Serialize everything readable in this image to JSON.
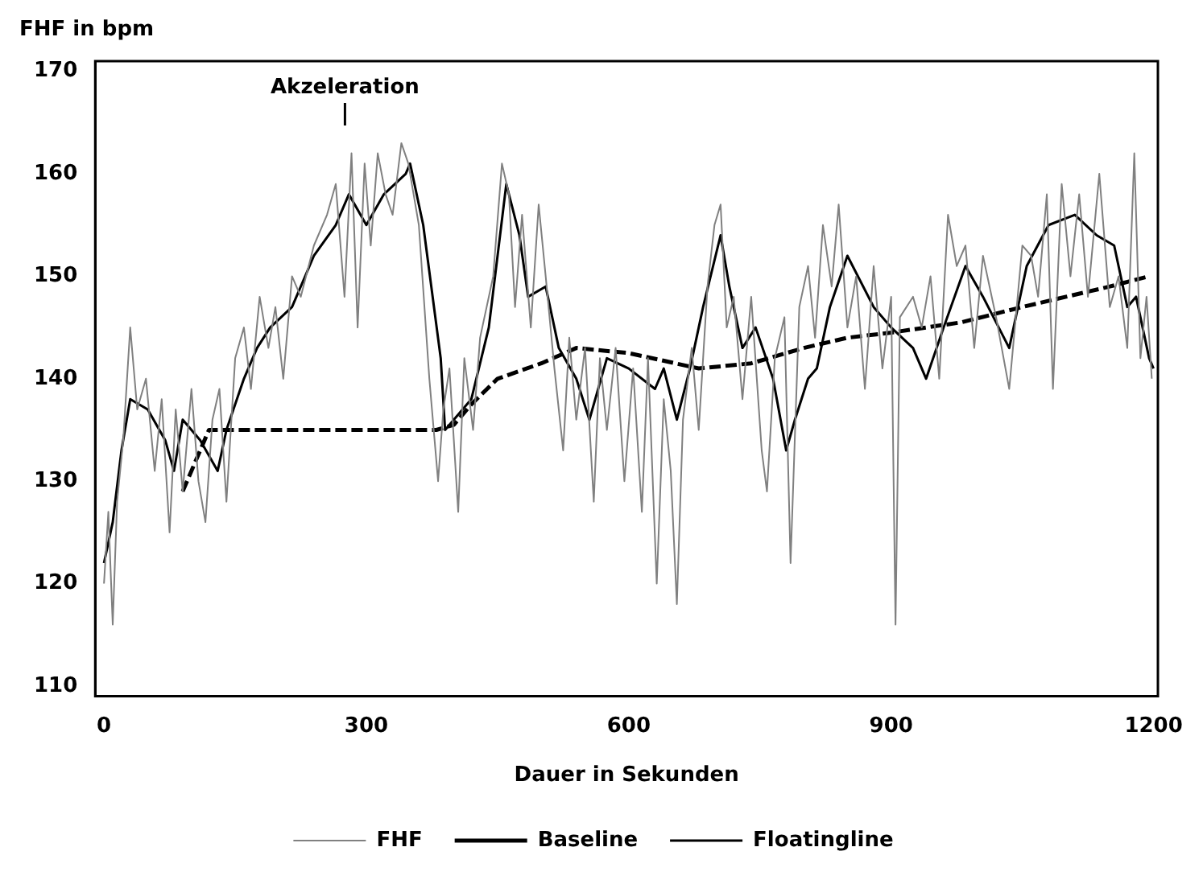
{
  "chart_data": {
    "type": "line",
    "ylabel": "FHF in bpm",
    "xlabel": "Dauer in Sekunden",
    "xlim": [
      -10,
      1205
    ],
    "ylim": [
      109,
      171
    ],
    "xticks": [
      0,
      300,
      600,
      900,
      1200
    ],
    "yticks": [
      110,
      120,
      130,
      140,
      150,
      160,
      170
    ],
    "grid": false,
    "legend": "bottom",
    "marker": "none",
    "annotations": [
      "Akzeleration"
    ],
    "series": [
      {
        "name": "FHF",
        "color": "#808080",
        "line_style": "solid",
        "x": [
          0,
          5,
          10,
          15,
          22,
          30,
          38,
          48,
          58,
          66,
          75,
          82,
          90,
          100,
          108,
          116,
          124,
          132,
          140,
          150,
          160,
          168,
          178,
          188,
          196,
          205,
          215,
          225,
          240,
          255,
          265,
          275,
          283,
          290,
          298,
          305,
          313,
          322,
          330,
          340,
          348,
          360,
          372,
          382,
          388,
          395,
          405,
          412,
          422,
          430,
          445,
          455,
          463,
          470,
          478,
          488,
          497,
          505,
          515,
          525,
          532,
          540,
          550,
          560,
          567,
          575,
          585,
          595,
          605,
          615,
          622,
          632,
          640,
          648,
          655,
          662,
          672,
          680,
          690,
          698,
          705,
          712,
          720,
          730,
          740,
          752,
          758,
          767,
          778,
          785,
          795,
          805,
          813,
          822,
          832,
          840,
          850,
          860,
          870,
          880,
          890,
          900,
          905,
          910,
          925,
          935,
          945,
          955,
          965,
          975,
          985,
          995,
          1005,
          1020,
          1035,
          1050,
          1060,
          1068,
          1078,
          1085,
          1095,
          1105,
          1115,
          1125,
          1138,
          1150,
          1160,
          1170,
          1178,
          1185,
          1192,
          1198
        ],
        "values": [
          120,
          127,
          116,
          128,
          134,
          145,
          137,
          140,
          131,
          138,
          125,
          137,
          129,
          139,
          130,
          126,
          136,
          139,
          128,
          142,
          145,
          139,
          148,
          143,
          147,
          140,
          150,
          148,
          153,
          156,
          159,
          148,
          162,
          145,
          161,
          153,
          162,
          158,
          156,
          163,
          161,
          155,
          140,
          130,
          137,
          141,
          127,
          142,
          135,
          144,
          150,
          161,
          158,
          147,
          156,
          145,
          157,
          150,
          141,
          133,
          144,
          136,
          143,
          128,
          142,
          135,
          143,
          130,
          141,
          127,
          142,
          120,
          138,
          131,
          118,
          136,
          143,
          135,
          149,
          155,
          157,
          145,
          148,
          138,
          148,
          133,
          129,
          142,
          146,
          122,
          147,
          151,
          144,
          155,
          149,
          157,
          145,
          150,
          139,
          151,
          141,
          148,
          116,
          146,
          148,
          145,
          150,
          140,
          156,
          151,
          153,
          143,
          152,
          146,
          139,
          153,
          152,
          148,
          158,
          139,
          159,
          150,
          158,
          148,
          160,
          147,
          150,
          143,
          162,
          142,
          148,
          140
        ]
      },
      {
        "name": "Baseline",
        "color": "#000000",
        "line_style": "dashed",
        "x": [
          90,
          120,
          200,
          300,
          380,
          400,
          420,
          450,
          500,
          540,
          600,
          680,
          740,
          800,
          850,
          900,
          980,
          1050,
          1100,
          1150,
          1195
        ],
        "values": [
          129,
          135,
          135,
          135,
          135,
          135.5,
          137.5,
          140,
          141.5,
          143,
          142.5,
          141,
          141.5,
          143,
          144,
          144.5,
          145.5,
          147,
          148,
          149,
          150
        ]
      },
      {
        "name": "Floatingline",
        "color": "#000000",
        "line_style": "solid",
        "x": [
          0,
          10,
          20,
          30,
          50,
          70,
          80,
          90,
          110,
          130,
          140,
          160,
          175,
          190,
          215,
          240,
          265,
          280,
          300,
          320,
          345,
          350,
          365,
          385,
          390,
          400,
          420,
          440,
          460,
          475,
          485,
          505,
          520,
          540,
          555,
          575,
          600,
          630,
          640,
          655,
          670,
          685,
          705,
          715,
          730,
          745,
          765,
          780,
          790,
          805,
          815,
          830,
          850,
          880,
          900,
          925,
          940,
          960,
          985,
          1005,
          1035,
          1055,
          1080,
          1110,
          1135,
          1155,
          1170,
          1180,
          1195,
          1200
        ],
        "values": [
          122,
          126,
          133,
          138,
          137,
          134,
          131,
          136,
          134,
          131,
          135,
          140,
          143,
          145,
          147,
          152,
          155,
          158,
          155,
          158,
          160,
          161,
          155,
          142,
          135,
          136,
          138,
          145,
          159,
          154,
          148,
          149,
          143,
          140,
          136,
          142,
          141,
          139,
          141,
          136,
          141,
          147,
          154,
          149,
          143,
          145,
          140,
          133,
          136,
          140,
          141,
          147,
          152,
          147,
          145,
          143,
          140,
          145,
          151,
          148,
          143,
          151,
          155,
          156,
          154,
          153,
          147,
          148,
          142,
          141
        ]
      }
    ]
  }
}
